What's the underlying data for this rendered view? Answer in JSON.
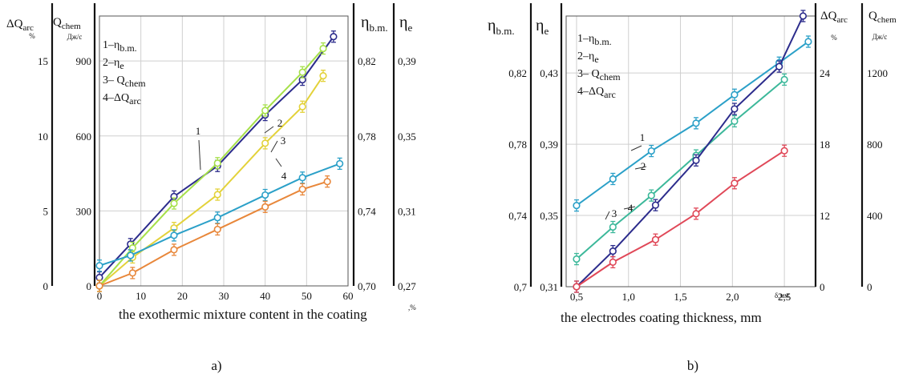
{
  "chart_data": [
    {
      "panel": "a)",
      "type": "line",
      "xlabel": "the exothermic mixture content in the coating",
      "xunit": ",%",
      "x_ticks": [
        "0",
        "10",
        "20",
        "30",
        "40",
        "50",
        "60"
      ],
      "xlim": [
        0,
        60
      ],
      "axes": [
        {
          "name_main": "ΔQ",
          "name_sub": "arc",
          "unit": "%",
          "ticks": [
            "0",
            "5",
            "10",
            "15"
          ],
          "lim": [
            0,
            18
          ]
        },
        {
          "name_main": "Q",
          "name_sub": "chem",
          "unit": "Дж/с",
          "ticks": [
            "0",
            "300",
            "600",
            "900"
          ],
          "lim": [
            0,
            1080
          ]
        },
        {
          "name_main": "η",
          "name_sub": "b.m.",
          "unit": "",
          "ticks": [
            "0,70",
            "0,74",
            "0,78",
            "0,82"
          ],
          "lim": [
            0.7,
            0.844
          ]
        },
        {
          "name_main": "η",
          "name_sub": "e",
          "unit": "",
          "ticks": [
            "0,27",
            "0,31",
            "0,35",
            "0,39"
          ],
          "lim": [
            0.27,
            0.414
          ]
        }
      ],
      "legend": [
        "1–ηb.m.",
        "2–ηe",
        "3– Qchem",
        "4–ΔQarc"
      ],
      "series": [
        {
          "label": "1",
          "axis": 2,
          "color": "#2c2c8c",
          "x": [
            0,
            7.5,
            18,
            28.5,
            40,
            49,
            56.5
          ],
          "y": [
            0.7045,
            0.7223,
            0.7477,
            0.764,
            0.7912,
            0.81,
            0.833
          ]
        },
        {
          "label": "2",
          "axis": 3,
          "color": "#e3d23a",
          "x": [
            0,
            8,
            18,
            28.5,
            40,
            49,
            54
          ],
          "y": [
            0.27,
            0.2852,
            0.3009,
            0.3187,
            0.3461,
            0.3656,
            0.3821
          ]
        },
        {
          "label": "3",
          "axis": 1,
          "color": "#a6e04a",
          "x": [
            0,
            8,
            18,
            28.5,
            40,
            49,
            54
          ],
          "y": [
            0,
            152,
            330,
            491,
            702,
            855,
            950
          ]
        },
        {
          "label": "4",
          "axis": 0,
          "color": "#2ba0c8",
          "x": [
            0,
            7.5,
            18,
            28.5,
            40,
            49,
            58
          ],
          "y": [
            1.35,
            2.03,
            3.37,
            4.55,
            6.06,
            7.22,
            8.15
          ]
        },
        {
          "label": "",
          "axis": 0,
          "color": "#e8873a",
          "x": [
            0,
            8,
            18,
            28.5,
            40,
            49,
            55
          ],
          "y": [
            0,
            0.86,
            2.41,
            3.77,
            5.27,
            6.44,
            6.96
          ]
        }
      ],
      "callouts": [
        "1",
        "2",
        "3",
        "4"
      ]
    },
    {
      "panel": "b)",
      "type": "line",
      "xlabel": "the electrodes coating thickness, mm",
      "xunit": "δ,мм",
      "x_ticks": [
        "0,5",
        "1,0",
        "1,5",
        "2,0",
        "2,5"
      ],
      "xlim": [
        0.4,
        2.8
      ],
      "axes": [
        {
          "name_main": "η",
          "name_sub": "b.m.",
          "unit": "",
          "ticks": [
            "0,7",
            "0,74",
            "0,78",
            "0,82"
          ],
          "lim": [
            0.7,
            0.852
          ]
        },
        {
          "name_main": "η",
          "name_sub": "e",
          "unit": "",
          "ticks": [
            "0,31",
            "0,35",
            "0,39",
            "0,43"
          ],
          "lim": [
            0.31,
            0.462
          ]
        },
        {
          "name_main": "ΔQ",
          "name_sub": "arc",
          "unit": "%",
          "ticks": [
            "0",
            "12",
            "18",
            "24"
          ],
          "lim": [
            0,
            30
          ]
        },
        {
          "name_main": "Q",
          "name_sub": "chem",
          "unit": "Дж/с",
          "ticks": [
            "0",
            "400",
            "800",
            "1200"
          ],
          "lim": [
            0,
            1500
          ]
        }
      ],
      "legend": [
        "1–ηb.m.",
        "2–ηe",
        "3– Qchem",
        "4–ΔQarc"
      ],
      "series": [
        {
          "label": "1",
          "axis": 0,
          "color": "#2ba0c8",
          "x": [
            0.5,
            0.85,
            1.22,
            1.65,
            2.02,
            2.45,
            2.73
          ],
          "y": [
            0.7456,
            0.7605,
            0.7762,
            0.7918,
            0.8078,
            0.8258,
            0.8376
          ]
        },
        {
          "label": "2",
          "axis": 1,
          "color": "#3cb89a",
          "x": [
            0.5,
            0.85,
            1.22,
            1.65,
            2.02,
            2.5
          ],
          "y": [
            0.3255,
            0.3435,
            0.3612,
            0.3837,
            0.4029,
            0.4263
          ]
        },
        {
          "label": "3",
          "axis": 3,
          "color": "#2c2c8c",
          "x": [
            0.5,
            0.85,
            1.26,
            1.65,
            2.02,
            2.45,
            2.68
          ],
          "y": [
            0,
            197,
            452,
            700,
            985,
            1220,
            1500
          ]
        },
        {
          "label": "4",
          "axis": 2,
          "color": "#e04858",
          "x": [
            0.5,
            0.85,
            1.26,
            1.65,
            2.02,
            2.5
          ],
          "y": [
            0,
            2.72,
            5.22,
            8.09,
            11.47,
            15.07
          ]
        }
      ],
      "callouts": [
        "1",
        "2",
        "3",
        "4"
      ]
    }
  ]
}
